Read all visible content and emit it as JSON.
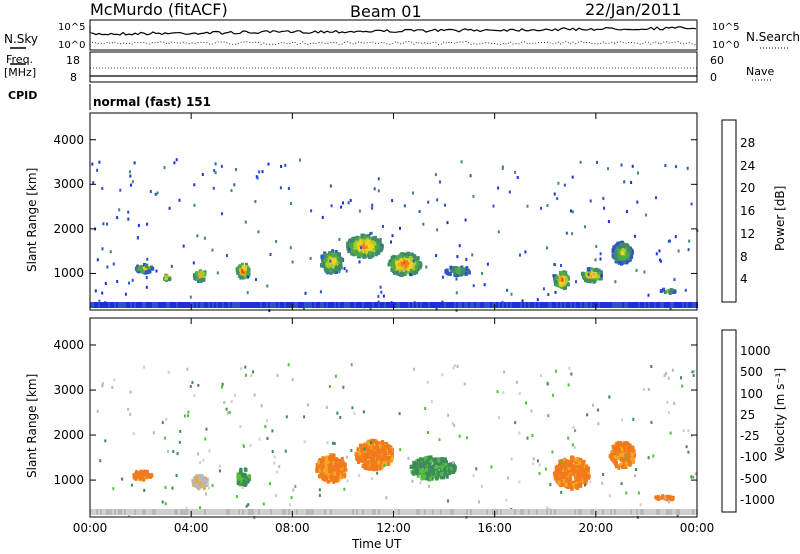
{
  "header": {
    "station": "McMurdo (fitACF)",
    "beam": "Beam 01",
    "date": "22/Jan/2011"
  },
  "top_panels": {
    "nsky_label": "N.Sky",
    "nsearch_label": "N.Search",
    "noise_ticks": [
      "10^5",
      "10^0"
    ],
    "freq_label_1": "Freq.",
    "freq_label_2": "[MHz]",
    "freq_ticks": [
      "18",
      "8"
    ],
    "nave_label": "Nave",
    "nave_ticks": [
      "60",
      "0"
    ],
    "cpid_label": "CPID",
    "cpid_value": "normal (fast) 151"
  },
  "chart_data": [
    {
      "type": "heatmap",
      "name": "power",
      "xlabel": "",
      "ylabel": "Slant Range [km]",
      "x_ticks": [
        "00:00",
        "04:00",
        "08:00",
        "12:00",
        "16:00",
        "20:00",
        "00:00"
      ],
      "xlim_hours": [
        0,
        24
      ],
      "y_ticks": [
        "1000",
        "2000",
        "3000",
        "4000"
      ],
      "ylim": [
        180,
        4600
      ],
      "colorbar_label": "Power [dB]",
      "colorbar_ticks": [
        "4",
        "8",
        "12",
        "16",
        "20",
        "24",
        "28"
      ],
      "colorbar_colors": [
        "#1e2fd8",
        "#2a55c8",
        "#3e8a6a",
        "#4fa848",
        "#a8cc2a",
        "#f2d21a",
        "#f5a623",
        "#f07a1c",
        "#e43a14",
        "#cc0000"
      ],
      "clusters": [
        {
          "t": 2.1,
          "r": 1150,
          "dt": 0.7,
          "dr": 180,
          "v": 16
        },
        {
          "t": 3.0,
          "r": 950,
          "dt": 0.3,
          "dr": 120,
          "v": 20
        },
        {
          "t": 4.3,
          "r": 1000,
          "dt": 0.5,
          "dr": 260,
          "v": 20
        },
        {
          "t": 6.0,
          "r": 1100,
          "dt": 0.5,
          "dr": 350,
          "v": 24
        },
        {
          "t": 9.5,
          "r": 1300,
          "dt": 0.9,
          "dr": 500,
          "v": 18
        },
        {
          "t": 10.8,
          "r": 1650,
          "dt": 1.4,
          "dr": 500,
          "v": 22
        },
        {
          "t": 12.4,
          "r": 1250,
          "dt": 1.3,
          "dr": 500,
          "v": 24
        },
        {
          "t": 14.5,
          "r": 1100,
          "dt": 1.0,
          "dr": 200,
          "v": 12
        },
        {
          "t": 18.6,
          "r": 900,
          "dt": 0.6,
          "dr": 400,
          "v": 24
        },
        {
          "t": 19.8,
          "r": 1000,
          "dt": 0.8,
          "dr": 300,
          "v": 22
        },
        {
          "t": 21.0,
          "r": 1500,
          "dt": 0.8,
          "dr": 500,
          "v": 14
        },
        {
          "t": 22.8,
          "r": 650,
          "dt": 0.6,
          "dr": 80,
          "v": 12
        }
      ]
    },
    {
      "type": "heatmap",
      "name": "velocity",
      "xlabel": "Time UT",
      "ylabel": "Slant Range [km]",
      "x_ticks": [
        "00:00",
        "04:00",
        "08:00",
        "12:00",
        "16:00",
        "20:00",
        "00:00"
      ],
      "xlim_hours": [
        0,
        24
      ],
      "y_ticks": [
        "1000",
        "2000",
        "3000",
        "4000"
      ],
      "ylim": [
        180,
        4600
      ],
      "colorbar_label": "Velocity [m s⁻¹]",
      "colorbar_ticks": [
        "1000",
        "500",
        "100",
        "25",
        "-25",
        "-100",
        "-500",
        "-1000"
      ],
      "colorbar_colors": [
        "#1e3fc8",
        "#2f73b8",
        "#3f8a5a",
        "#52c13a",
        "#b8b8b8",
        "#cfcfcf",
        "#f5a623",
        "#f07a1c",
        "#ee4b14",
        "#dd0000"
      ],
      "clusters": [
        {
          "t": 2.0,
          "r": 1150,
          "dt": 0.8,
          "dr": 200,
          "v": "orange"
        },
        {
          "t": 4.3,
          "r": 1000,
          "dt": 0.6,
          "dr": 300,
          "v": "grey"
        },
        {
          "t": 6.0,
          "r": 1100,
          "dt": 0.5,
          "dr": 400,
          "v": "green"
        },
        {
          "t": 9.5,
          "r": 1300,
          "dt": 1.2,
          "dr": 600,
          "v": "orange"
        },
        {
          "t": 11.2,
          "r": 1600,
          "dt": 1.5,
          "dr": 650,
          "v": "orange"
        },
        {
          "t": 13.5,
          "r": 1300,
          "dt": 1.8,
          "dr": 500,
          "v": "green"
        },
        {
          "t": 19.0,
          "r": 1200,
          "dt": 1.4,
          "dr": 700,
          "v": "orange"
        },
        {
          "t": 21.0,
          "r": 1600,
          "dt": 1.0,
          "dr": 600,
          "v": "orange"
        },
        {
          "t": 22.7,
          "r": 650,
          "dt": 0.8,
          "dr": 80,
          "v": "orange"
        }
      ]
    }
  ]
}
